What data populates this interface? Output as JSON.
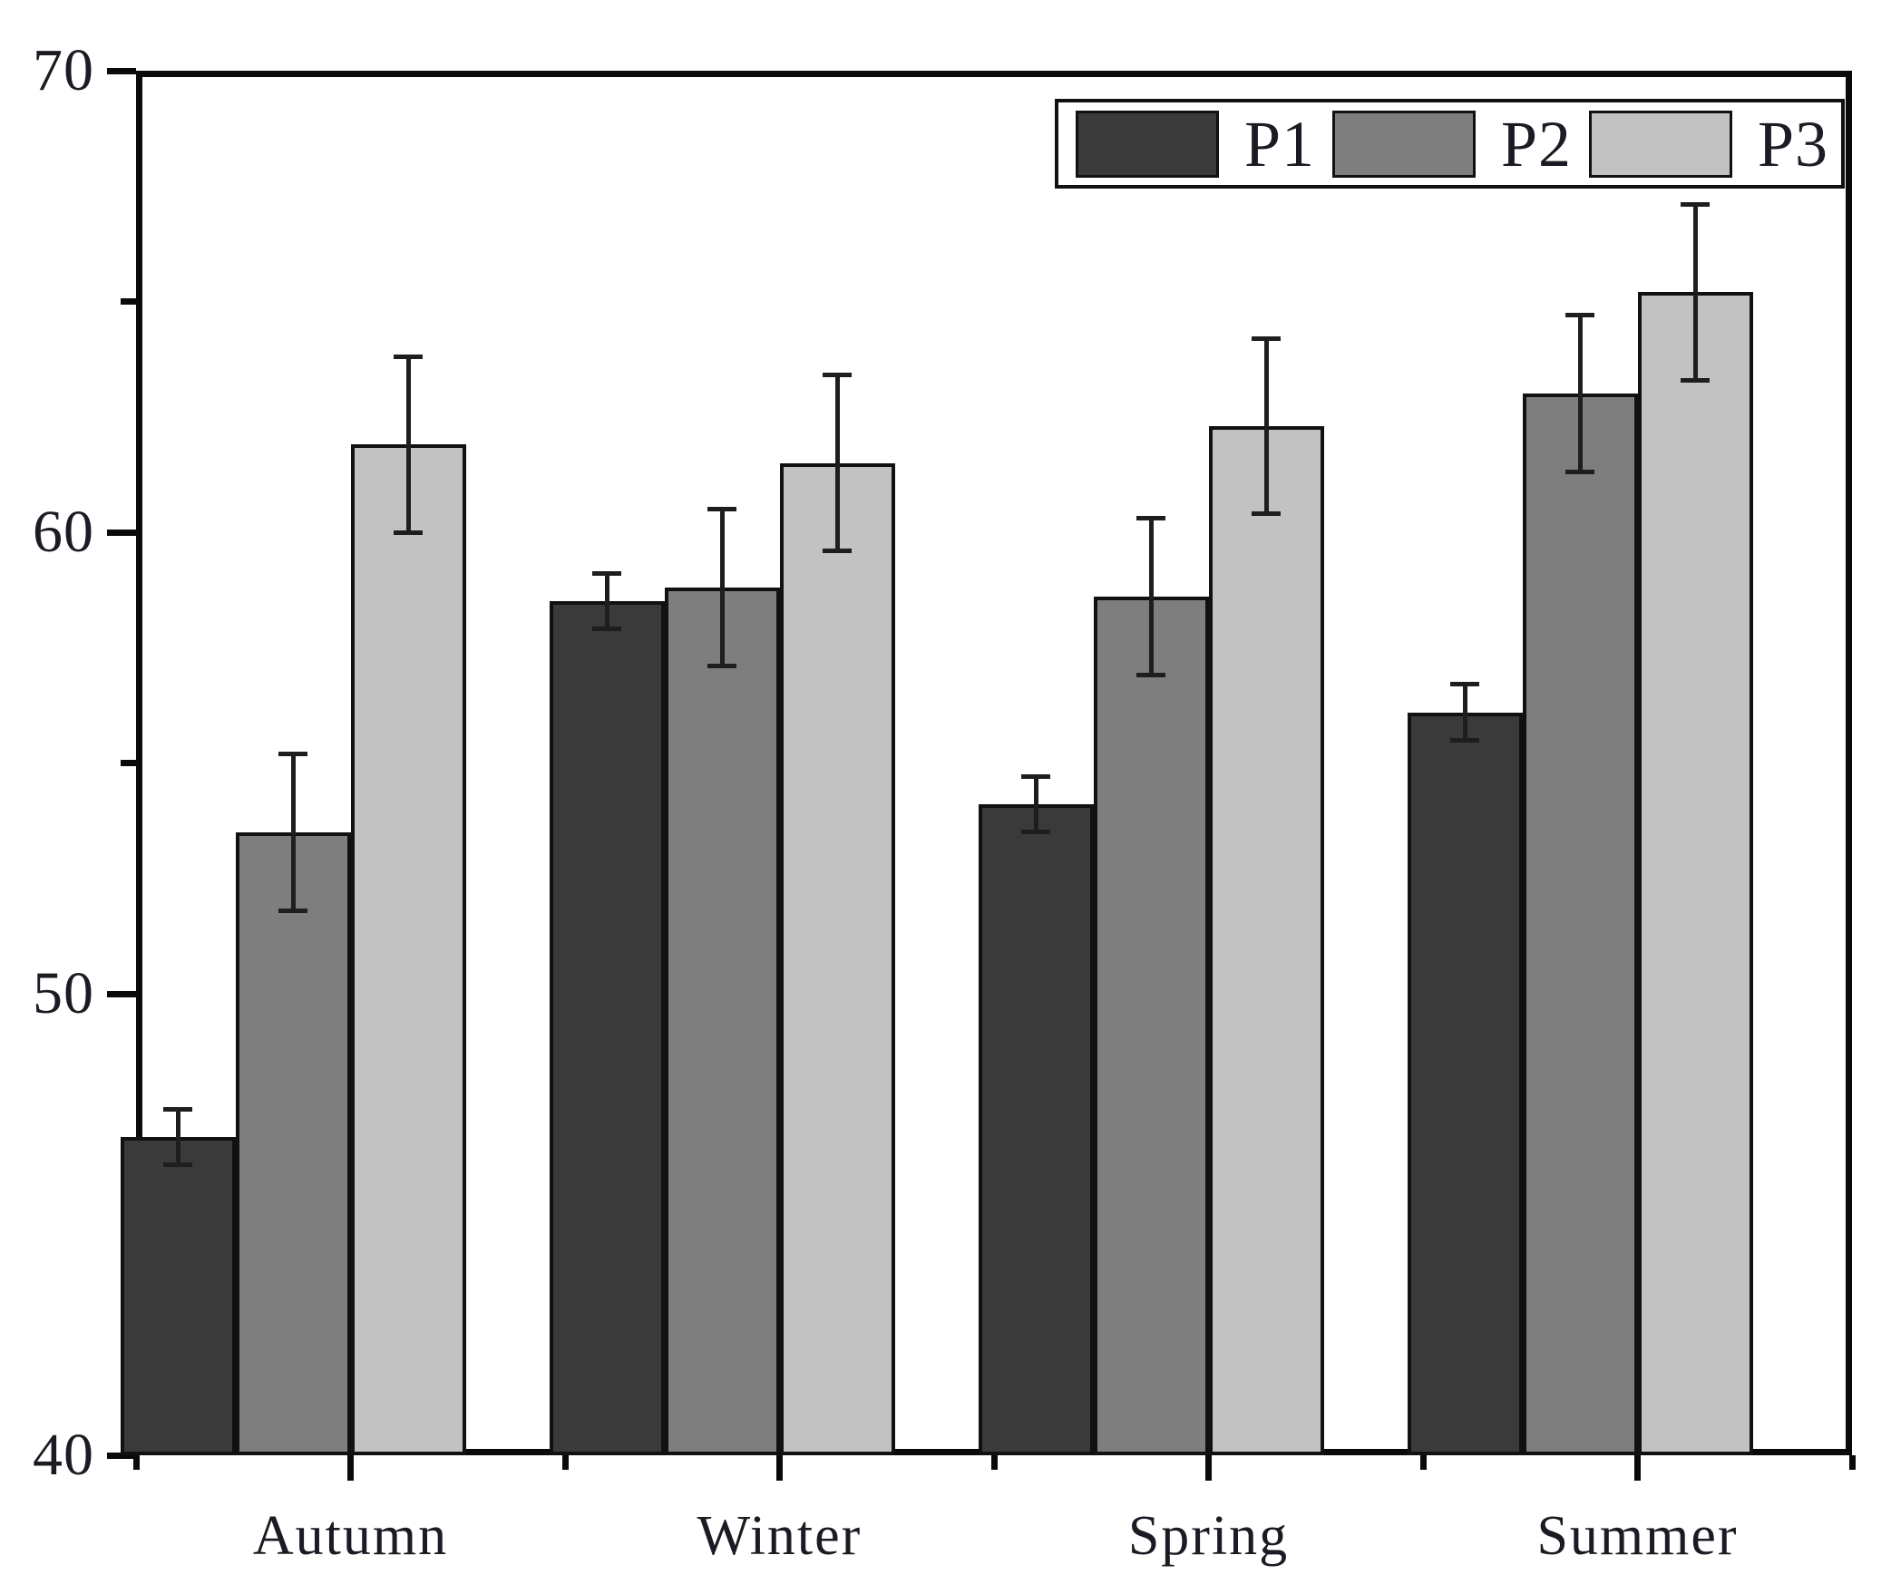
{
  "chart_data": {
    "type": "bar",
    "title": "",
    "xlabel": "",
    "ylabel": "",
    "categories": [
      "Autumn",
      "Winter",
      "Spring",
      "Summer"
    ],
    "series": [
      {
        "name": "P1",
        "color": "#3a3a3a",
        "values": [
          46.9,
          58.5,
          54.1,
          56.1
        ],
        "error": [
          0.6,
          0.6,
          0.6,
          0.6
        ]
      },
      {
        "name": "P2",
        "color": "#7e7e7e",
        "values": [
          53.5,
          58.8,
          58.6,
          63.0
        ],
        "error": [
          1.7,
          1.7,
          1.7,
          1.7
        ]
      },
      {
        "name": "P3",
        "color": "#c2c2c2",
        "values": [
          61.9,
          61.5,
          62.3,
          65.2
        ],
        "error": [
          1.9,
          1.9,
          1.9,
          1.9
        ]
      }
    ],
    "ylim": [
      40,
      70
    ],
    "yticks_major": [
      40,
      50,
      60,
      70
    ],
    "ytick_labels": [
      "40",
      "50",
      "60",
      "70"
    ],
    "yticks_minor": [
      45,
      55,
      65
    ],
    "grid": false,
    "error_bars": true,
    "legend_position": "top-right",
    "legend_labels": [
      "P1",
      "P2",
      "P3"
    ],
    "colors": {
      "axis": "#0a0a0a",
      "bar_border": "#111111",
      "error_bar": "#1e1e1e",
      "text": "#1b1b24",
      "background": "#ffffff"
    }
  }
}
